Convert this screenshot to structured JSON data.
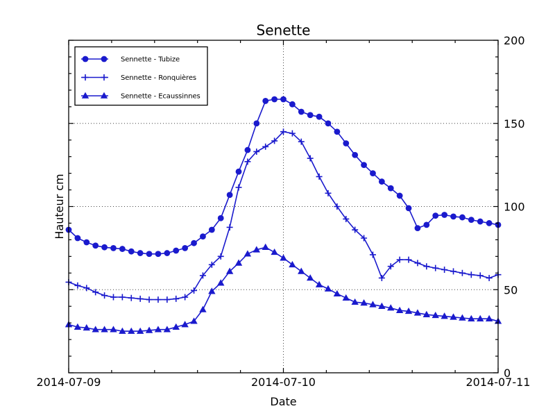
{
  "chart_data": {
    "type": "line",
    "title": "Senette",
    "xlabel": "Date",
    "ylabel": "Hauteur cm",
    "x_unit": "hours since 2014-07-09 00:00",
    "x_hours_step": 1,
    "xlim_hours": [
      0,
      48
    ],
    "ylim": [
      0,
      200
    ],
    "x_tick_labels": [
      "2014-07-09",
      "2014-07-10",
      "2014-07-11"
    ],
    "x_tick_hours": [
      0,
      24,
      48
    ],
    "x_minor_tick_hours": [
      4.8,
      9.6,
      14.4,
      19.2,
      28.8,
      33.6,
      38.4,
      43.2
    ],
    "y_tick_labels": [
      "0",
      "50",
      "100",
      "150",
      "200"
    ],
    "y_ticks": [
      0,
      50,
      100,
      150,
      200
    ],
    "y_minor_step": 10,
    "grid": {
      "linestyle": "dotted",
      "color": "#444444",
      "y_values": [
        50,
        100,
        150
      ],
      "x_hours": [
        24
      ]
    },
    "line_color": "#1a1acd",
    "legend_position": "upper left",
    "series": [
      {
        "name": "Sennette - Tubize",
        "marker": "circle",
        "values": [
          86,
          81,
          78.5,
          76.5,
          75.5,
          75,
          74.5,
          73,
          72,
          71.5,
          71.5,
          72,
          73.5,
          75,
          78,
          82,
          86,
          93,
          107,
          121,
          134,
          150,
          163.5,
          164.5,
          164.5,
          161.5,
          157,
          155,
          154,
          150,
          145,
          138,
          131,
          125,
          120,
          115,
          111,
          106.5,
          99,
          87,
          89,
          94.5,
          95,
          94,
          93.5,
          92,
          91,
          90,
          89
        ]
      },
      {
        "name": "Sennette - Ronquières",
        "marker": "plus",
        "values": [
          54.5,
          52.5,
          51,
          48.5,
          46.5,
          45.5,
          45.5,
          45,
          44.5,
          44,
          44,
          44,
          44.5,
          45.5,
          49.5,
          58.5,
          65,
          70,
          87.5,
          111.5,
          127,
          133,
          136,
          139.5,
          145,
          144,
          139,
          129,
          118,
          108,
          100,
          92.5,
          86,
          81,
          71,
          57,
          64,
          68,
          68,
          66,
          64,
          63,
          62,
          61,
          60,
          59,
          58.5,
          57,
          59
        ]
      },
      {
        "name": "Sennette - Ecaussinnes",
        "marker": "triangle",
        "values": [
          29,
          27.5,
          27,
          26,
          26,
          26,
          25,
          25,
          25,
          25.5,
          26,
          26,
          27.5,
          29,
          31,
          38,
          49,
          54,
          61,
          66,
          71.5,
          74,
          75.5,
          72.5,
          69,
          65,
          61,
          57,
          53,
          50.5,
          47.5,
          45,
          42.5,
          42,
          41,
          40,
          39,
          37.5,
          37,
          36,
          35,
          34.5,
          34,
          33.5,
          33,
          32.5,
          32.5,
          32.5,
          31
        ]
      }
    ]
  }
}
